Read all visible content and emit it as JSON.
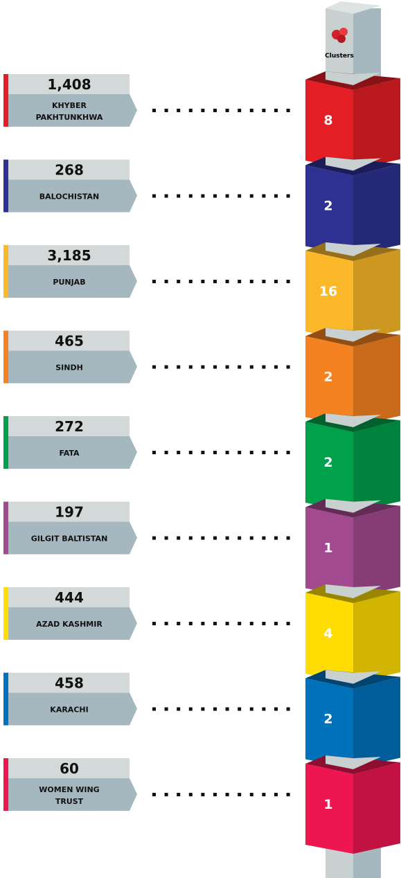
{
  "pole_label": "Clusters",
  "items": [
    {
      "count": "1,408",
      "region": [
        "KHYBER",
        "PAKHTUNKHWA"
      ],
      "clusters": "8",
      "color": "#e31e24"
    },
    {
      "count": "268",
      "region": [
        "BALOCHISTAN"
      ],
      "clusters": "2",
      "color": "#2e3192"
    },
    {
      "count": "3,185",
      "region": [
        "PUNJAB"
      ],
      "clusters": "16",
      "color": "#fbb829"
    },
    {
      "count": "465",
      "region": [
        "SINDH"
      ],
      "clusters": "2",
      "color": "#f58220"
    },
    {
      "count": "272",
      "region": [
        "FATA"
      ],
      "clusters": "2",
      "color": "#00a14b"
    },
    {
      "count": "197",
      "region": [
        "GILGIT BALTISTAN"
      ],
      "clusters": "1",
      "color": "#a3498f"
    },
    {
      "count": "444",
      "region": [
        "AZAD KASHMIR"
      ],
      "clusters": "4",
      "color": "#ffdd00"
    },
    {
      "count": "458",
      "region": [
        "KARACHI"
      ],
      "clusters": "2",
      "color": "#0072bc"
    },
    {
      "count": "60",
      "region": [
        "WOMEN WING",
        "TRUST"
      ],
      "clusters": "1",
      "color": "#ed1651"
    }
  ]
}
